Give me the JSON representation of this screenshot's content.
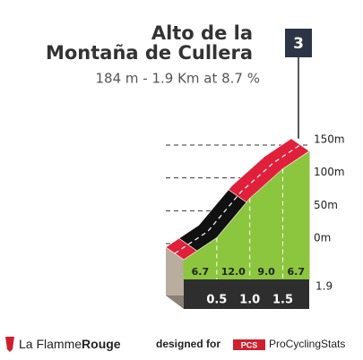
{
  "chart_data": {
    "type": "profile",
    "title_lines": [
      "Alto de la",
      "Montaña de Cullera"
    ],
    "subtitle": "184 m - 1.9 Km at 8.7 %",
    "category": "3",
    "bins": [
      0,
      0.5,
      1,
      1.5,
      1.9
    ],
    "gradients": [
      6.7,
      12,
      9,
      6.7
    ],
    "value_labels": [
      "6.7",
      "12.0",
      "9.0",
      "6.7"
    ],
    "color": "#8cc63f",
    "stripe": [
      {
        "from": 0,
        "to": 0.2,
        "color": "#e0203a"
      },
      {
        "from": 0.2,
        "to": 0.95,
        "color": "#111111"
      },
      {
        "from": 0.95,
        "to": 1.9,
        "color": "#e0203a"
      }
    ],
    "xlim": [
      0,
      1.9
    ],
    "xticks": [
      0.5,
      {
        "value": 1,
        "label": "1.0"
      },
      1.5,
      1.9
    ],
    "ylim": [
      -25,
      175
    ],
    "yticks": [
      {
        "value": 0,
        "label": "0m"
      },
      {
        "value": 50,
        "label": "50m"
      },
      {
        "value": 100,
        "label": "100m"
      },
      {
        "value": 150,
        "label": "150m"
      }
    ]
  },
  "footer": {
    "brand_left": "La Flamme",
    "brand_right": "Rouge",
    "designed_for": "designed for",
    "pcs": "PCS",
    "site": "ProCyclingStats"
  }
}
